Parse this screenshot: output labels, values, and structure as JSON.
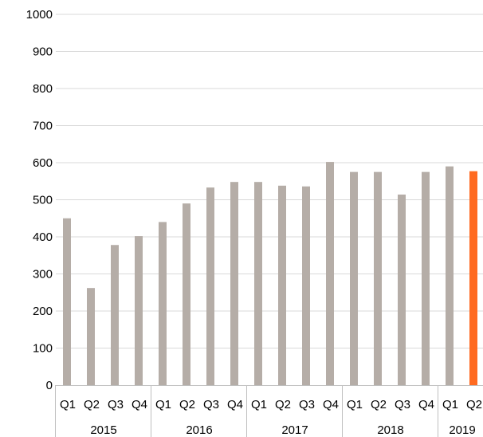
{
  "chart_data": {
    "type": "bar",
    "title": "",
    "xlabel": "",
    "ylabel": "",
    "ylim": [
      0,
      1000
    ],
    "yticks": [
      "0",
      "100",
      "200",
      "300",
      "400",
      "500",
      "600",
      "700",
      "800",
      "900",
      "1000"
    ],
    "grid": true,
    "legend": "none",
    "categories": [
      "Q1",
      "Q2",
      "Q3",
      "Q4",
      "Q1",
      "Q2",
      "Q3",
      "Q4",
      "Q1",
      "Q2",
      "Q3",
      "Q4",
      "Q1",
      "Q2",
      "Q3",
      "Q4",
      "Q1",
      "Q2"
    ],
    "groups": [
      {
        "label": "2015",
        "count": 4
      },
      {
        "label": "2016",
        "count": 4
      },
      {
        "label": "2017",
        "count": 4
      },
      {
        "label": "2018",
        "count": 4
      },
      {
        "label": "2019",
        "count": 2
      }
    ],
    "values": [
      450,
      262,
      378,
      402,
      440,
      490,
      533,
      548,
      548,
      538,
      536,
      602,
      575,
      575,
      514,
      575,
      590,
      577
    ],
    "colors": {
      "default": "#b5ada7",
      "highlight": "#ff6a20",
      "grid": "#d9d9d9",
      "axis": "#bfbfbf"
    },
    "highlight_index": 17
  }
}
